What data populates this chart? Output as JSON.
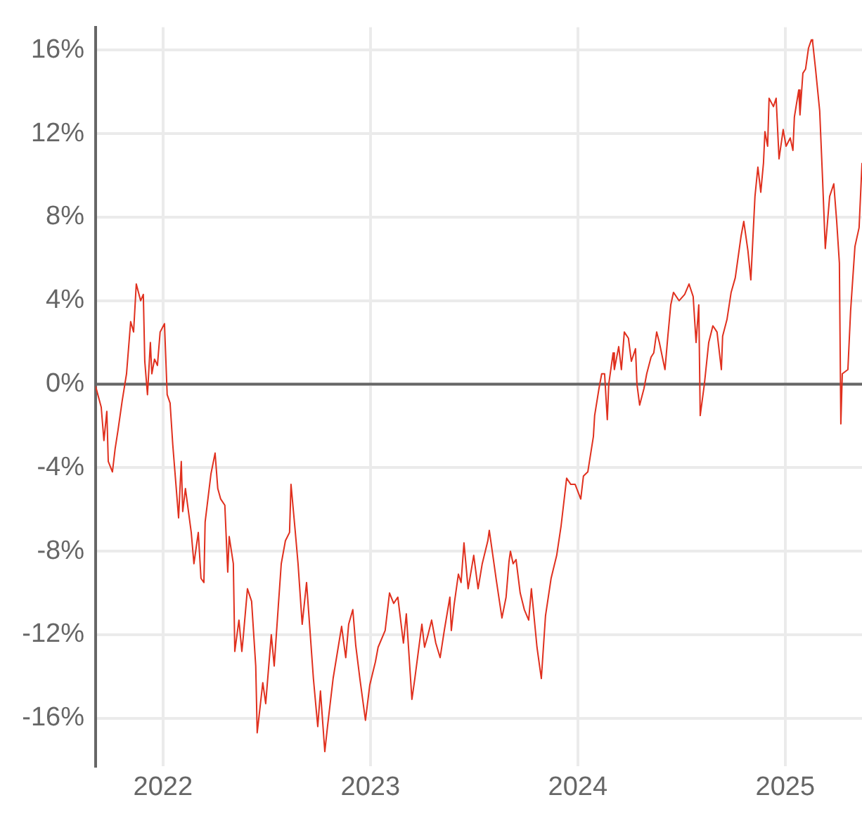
{
  "chart_data": {
    "type": "line",
    "x": [
      2021.675,
      2021.702,
      2021.715,
      2021.729,
      2021.736,
      2021.756,
      2021.769,
      2021.783,
      2021.803,
      2021.824,
      2021.844,
      2021.858,
      2021.871,
      2021.892,
      2021.905,
      2021.912,
      2021.925,
      2021.939,
      2021.946,
      2021.959,
      2021.973,
      2021.986,
      2022.007,
      2022.02,
      2022.034,
      2022.047,
      2022.075,
      2022.088,
      2022.095,
      2022.108,
      2022.136,
      2022.149,
      2022.17,
      2022.183,
      2022.197,
      2022.203,
      2022.231,
      2022.251,
      2022.264,
      2022.278,
      2022.298,
      2022.312,
      2022.319,
      2022.339,
      2022.346,
      2022.366,
      2022.38,
      2022.386,
      2022.407,
      2022.427,
      2022.447,
      2022.454,
      2022.481,
      2022.495,
      2022.522,
      2022.536,
      2022.556,
      2022.57,
      2022.59,
      2022.61,
      2022.617,
      2022.637,
      2022.651,
      2022.671,
      2022.692,
      2022.725,
      2022.746,
      2022.759,
      2022.78,
      2022.793,
      2022.82,
      2022.861,
      2022.881,
      2022.895,
      2022.915,
      2022.929,
      2022.949,
      2022.976,
      2022.997,
      2023.024,
      2023.037,
      2023.071,
      2023.092,
      2023.112,
      2023.132,
      2023.159,
      2023.173,
      2023.2,
      2023.214,
      2023.248,
      2023.261,
      2023.275,
      2023.295,
      2023.315,
      2023.336,
      2023.356,
      2023.383,
      2023.39,
      2023.403,
      2023.424,
      2023.437,
      2023.451,
      2023.471,
      2023.498,
      2023.519,
      2023.539,
      2023.566,
      2023.573,
      2023.593,
      2023.607,
      2023.634,
      2023.654,
      2023.668,
      2023.675,
      2023.688,
      2023.702,
      2023.722,
      2023.742,
      2023.763,
      2023.776,
      2023.803,
      2023.824,
      2023.844,
      2023.871,
      2023.898,
      2023.919,
      2023.946,
      2023.966,
      2023.987,
      2024.014,
      2024.027,
      2024.048,
      2024.075,
      2024.081,
      2024.102,
      2024.115,
      2024.129,
      2024.142,
      2024.149,
      2024.17,
      2024.176,
      2024.197,
      2024.21,
      2024.224,
      2024.244,
      2024.258,
      2024.278,
      2024.285,
      2024.298,
      2024.319,
      2024.332,
      2024.353,
      2024.366,
      2024.38,
      2024.393,
      2024.42,
      2024.434,
      2024.448,
      2024.461,
      2024.488,
      2024.515,
      2024.536,
      2024.556,
      2024.57,
      2024.583,
      2024.59,
      2024.61,
      2024.631,
      2024.651,
      2024.671,
      2024.692,
      2024.698,
      2024.719,
      2024.739,
      2024.759,
      2024.787,
      2024.8,
      2024.82,
      2024.834,
      2024.854,
      2024.868,
      2024.882,
      2024.895,
      2024.902,
      2024.915,
      2024.922,
      2024.943,
      2024.956,
      2024.97,
      2024.99,
      2025.004,
      2025.024,
      2025.037,
      2025.044,
      2025.065,
      2025.071,
      2025.085,
      2025.098,
      2025.112,
      2025.126,
      2025.132,
      2025.146,
      2025.166,
      2025.18,
      2025.193,
      2025.214,
      2025.234,
      2025.248,
      2025.261,
      2025.268,
      2025.275,
      2025.302,
      2025.315,
      2025.336,
      2025.356,
      2025.37
    ],
    "series": [
      {
        "color": "#e0301e",
        "values": [
          -0.1,
          -1.1,
          -2.7,
          -1.3,
          -3.7,
          -4.2,
          -3.1,
          -2.2,
          -0.8,
          0.5,
          3.0,
          2.5,
          4.8,
          4.0,
          4.3,
          1.1,
          -0.5,
          2.0,
          0.5,
          1.2,
          0.9,
          2.5,
          2.9,
          -0.5,
          -0.9,
          -2.9,
          -6.4,
          -3.7,
          -6.1,
          -5.0,
          -7.1,
          -8.6,
          -7.1,
          -9.3,
          -9.5,
          -6.6,
          -4.3,
          -3.3,
          -5.0,
          -5.5,
          -5.8,
          -9.0,
          -7.3,
          -8.6,
          -12.8,
          -11.3,
          -12.8,
          -12.2,
          -9.8,
          -10.4,
          -13.5,
          -16.7,
          -14.3,
          -15.3,
          -12.0,
          -13.5,
          -10.6,
          -8.6,
          -7.5,
          -7.1,
          -4.8,
          -7.0,
          -8.6,
          -11.5,
          -9.5,
          -14.1,
          -16.4,
          -14.7,
          -17.6,
          -16.4,
          -14.1,
          -11.6,
          -13.1,
          -11.5,
          -10.8,
          -12.5,
          -14.1,
          -16.1,
          -14.4,
          -13.3,
          -12.6,
          -11.8,
          -10.0,
          -10.5,
          -10.2,
          -12.4,
          -11.0,
          -15.1,
          -14.1,
          -11.5,
          -12.6,
          -12.1,
          -11.3,
          -12.4,
          -13.1,
          -11.8,
          -10.2,
          -11.8,
          -10.6,
          -9.1,
          -9.5,
          -7.6,
          -9.8,
          -8.2,
          -9.8,
          -8.6,
          -7.5,
          -7.0,
          -8.4,
          -9.4,
          -11.2,
          -10.2,
          -8.5,
          -8.0,
          -8.6,
          -8.4,
          -10.0,
          -10.8,
          -11.3,
          -9.8,
          -12.6,
          -14.1,
          -11.1,
          -9.3,
          -8.2,
          -6.8,
          -4.5,
          -4.8,
          -4.8,
          -5.5,
          -4.4,
          -4.2,
          -2.5,
          -1.5,
          -0.2,
          0.5,
          0.5,
          -1.7,
          0.0,
          1.5,
          0.7,
          1.8,
          0.7,
          2.5,
          2.2,
          1.1,
          1.7,
          0.0,
          -1.0,
          -0.2,
          0.5,
          1.3,
          1.5,
          2.5,
          2.0,
          0.7,
          2.3,
          3.8,
          4.4,
          4.0,
          4.3,
          4.8,
          4.2,
          2.0,
          3.8,
          -1.5,
          0.0,
          2.0,
          2.8,
          2.5,
          0.7,
          2.3,
          3.1,
          4.4,
          5.1,
          7.1,
          7.8,
          6.4,
          5.0,
          9.0,
          10.4,
          9.2,
          10.6,
          12.1,
          11.4,
          13.7,
          13.3,
          13.7,
          10.8,
          12.2,
          11.4,
          11.8,
          11.2,
          12.8,
          14.1,
          12.9,
          14.9,
          15.1,
          16.1,
          16.5,
          16.4,
          15.1,
          13.1,
          9.8,
          6.5,
          9.0,
          9.6,
          7.8,
          5.8,
          -1.9,
          0.5,
          0.7,
          3.5,
          6.6,
          7.5,
          10.6
        ]
      }
    ],
    "xlim": [
      2021.675,
      2025.37
    ],
    "xticks": [
      2022,
      2023,
      2024,
      2025
    ],
    "ylim": [
      -18.3,
      17.1
    ],
    "yticks": [
      {
        "value": -16,
        "label": "-16%"
      },
      {
        "value": -12,
        "label": "-12%"
      },
      {
        "value": -8,
        "label": "-8%"
      },
      {
        "value": -4,
        "label": "-4%"
      },
      {
        "value": 0,
        "label": "0%"
      },
      {
        "value": 4,
        "label": "4%"
      },
      {
        "value": 8,
        "label": "8%"
      },
      {
        "value": 12,
        "label": "12%"
      },
      {
        "value": 16,
        "label": "16%"
      }
    ],
    "grid": true,
    "legend": false,
    "marker": "none",
    "line_style": "solid",
    "ref_lines": [
      {
        "axis": "y",
        "value": 0,
        "color": "#666666"
      }
    ]
  }
}
